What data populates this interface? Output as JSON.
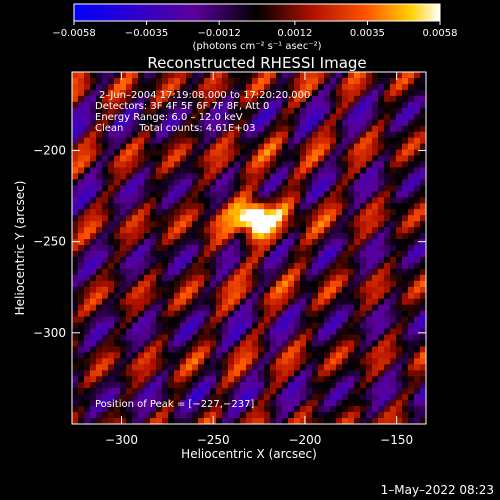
{
  "chart_data": {
    "type": "heatmap",
    "title": "Reconstructed RHESSI Image",
    "xlabel": "Heliocentric X (arcsec)",
    "ylabel": "Heliocentric Y (arcsec)",
    "xlim": [
      -327,
      -134
    ],
    "ylim": [
      -350,
      -157
    ],
    "x_ticks": [
      -300,
      -250,
      -200,
      -150
    ],
    "x_tick_labels": [
      "−300",
      "−250",
      "−200",
      "−150"
    ],
    "y_ticks": [
      -200,
      -250,
      -300
    ],
    "y_tick_labels": [
      "−200",
      "−250",
      "−300"
    ],
    "colorbar": {
      "range": [
        -0.0058,
        0.0058
      ],
      "ticks": [
        -0.0058,
        -0.0035,
        -0.0012,
        0.0012,
        0.0035,
        0.0058
      ],
      "tick_labels": [
        "−0.0058",
        "−0.0035",
        "−0.0012",
        "0.0012",
        "0.0035",
        "0.0058"
      ],
      "unit_label": "(photons cm⁻² s⁻¹ asec⁻²)",
      "colors": [
        "#0000ff",
        "#5a0099",
        "#000000",
        "#b01000",
        "#ff5500",
        "#ffd000",
        "#ffffff"
      ]
    },
    "annotations": {
      "line1": "2–Jun–2004 17:19:08.000 to 17:20:20.000",
      "line2": "Detectors: 3F 4F 5F 6F 7F 8F, Att 0",
      "line3": "Energy Range: 6.0 – 12.0 keV",
      "line4": "Clean     Total counts: 4.61E+03",
      "peak": "Position of Peak = [−227,−237]"
    },
    "peak": {
      "x": -227,
      "y": -237
    },
    "timestamp": "1–May–2022 08:23"
  }
}
